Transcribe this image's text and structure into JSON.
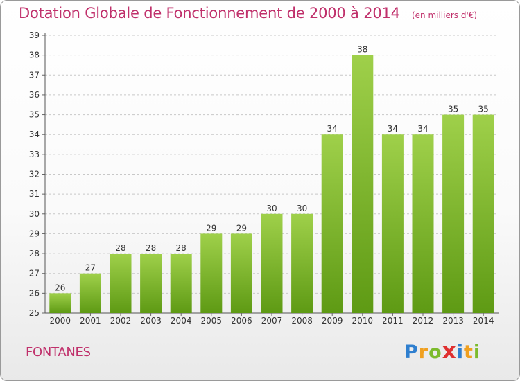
{
  "header": {
    "title": "Dotation Globale de Fonctionnement de 2000 à 2014",
    "unit": "(en milliers d'€)"
  },
  "footer": {
    "commune": "FONTANES",
    "logo_letters": [
      "P",
      "r",
      "o",
      "x",
      "i",
      "t",
      "i"
    ],
    "logo_colors": [
      "#2f7fcf",
      "#f0a020",
      "#7cbb2c",
      "#e03030",
      "#2f7fcf",
      "#f0a020",
      "#7cbb2c"
    ]
  },
  "chart_data": {
    "type": "bar",
    "title": "Dotation Globale de Fonctionnement de 2000 à 2014",
    "subtitle": "(en milliers d'€)",
    "categories": [
      "2000",
      "2001",
      "2002",
      "2003",
      "2004",
      "2005",
      "2006",
      "2007",
      "2008",
      "2009",
      "2010",
      "2011",
      "2012",
      "2013",
      "2014"
    ],
    "values": [
      26,
      27,
      28,
      28,
      28,
      29,
      29,
      30,
      30,
      34,
      38,
      34,
      34,
      35,
      35
    ],
    "data_labels": [
      "26",
      "27",
      "28",
      "28",
      "28",
      "29",
      "29",
      "30",
      "30",
      "34",
      "38",
      "34",
      "34",
      "35",
      "35"
    ],
    "ylim": [
      25,
      39
    ],
    "yticks": [
      "25",
      "26",
      "27",
      "28",
      "29",
      "30",
      "31",
      "32",
      "33",
      "34",
      "35",
      "36",
      "37",
      "38",
      "39"
    ],
    "grid": true,
    "colors": {
      "bar_light": "#9fd04a",
      "bar_dark": "#5e9a14",
      "grid": "#c8c8c8",
      "text": "#333333",
      "accent": "#c0306b"
    }
  }
}
